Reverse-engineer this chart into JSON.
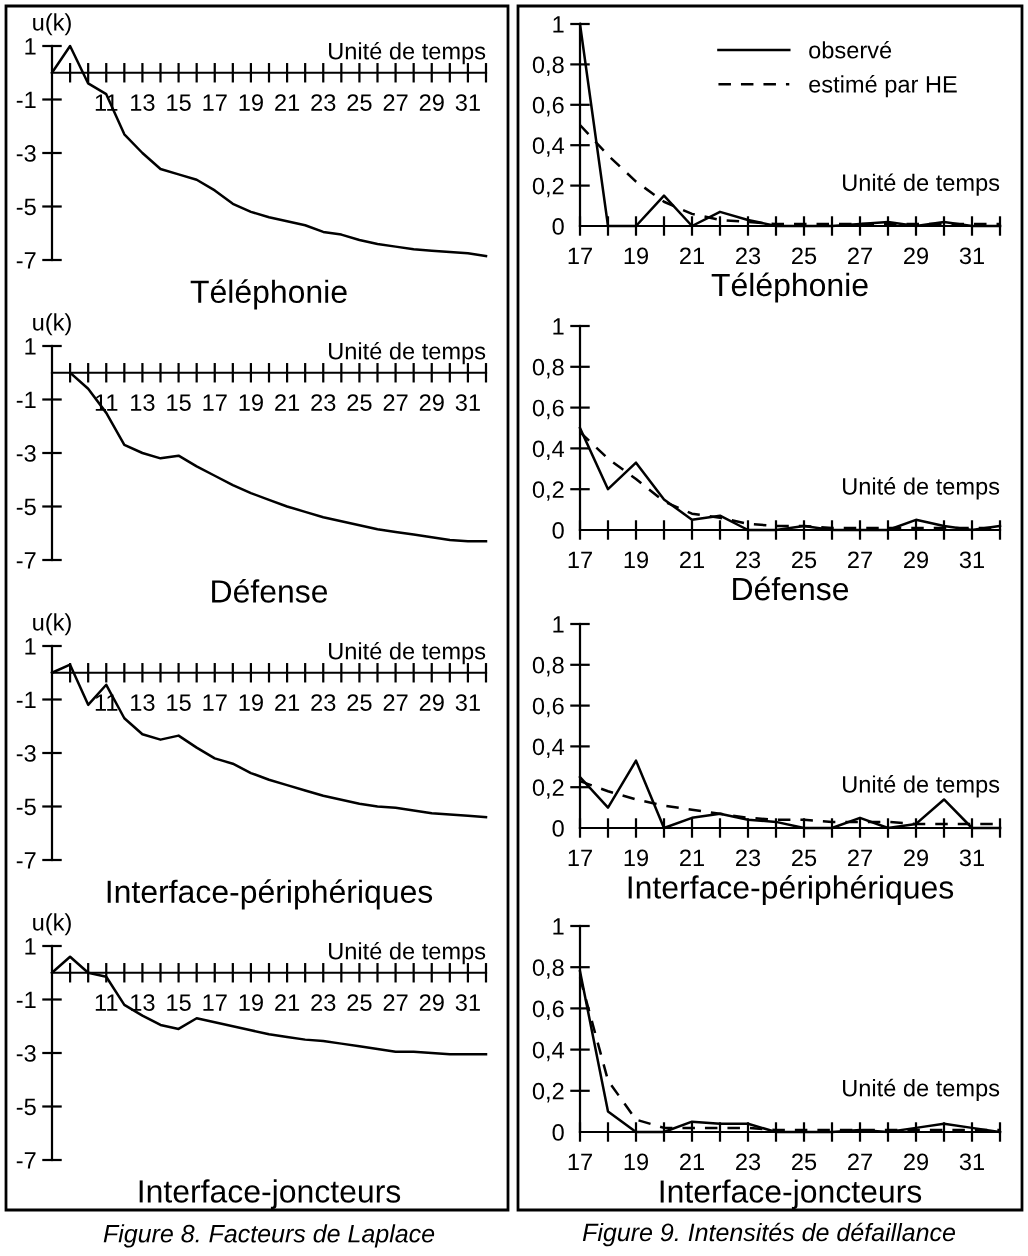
{
  "chart_data": [
    {
      "type": "line",
      "title": "Téléphonie",
      "ylabel": "u(k)",
      "xlabel": "Unité de temps",
      "xlim": [
        8,
        32
      ],
      "ylim": [
        -7,
        1
      ],
      "xticks": [
        {
          "value": 9,
          "label": null
        },
        {
          "value": 10,
          "label": null
        },
        11,
        {
          "value": 12,
          "label": null
        },
        13,
        {
          "value": 14,
          "label": null
        },
        15,
        {
          "value": 16,
          "label": null
        },
        17,
        {
          "value": 18,
          "label": null
        },
        19,
        {
          "value": 20,
          "label": null
        },
        21,
        {
          "value": 22,
          "label": null
        },
        23,
        {
          "value": 24,
          "label": null
        },
        25,
        {
          "value": 26,
          "label": null
        },
        27,
        {
          "value": 28,
          "label": null
        },
        29,
        {
          "value": 30,
          "label": null
        },
        31,
        {
          "value": 32,
          "label": null
        }
      ],
      "yticks": [
        {
          "value": 1,
          "label": "1"
        },
        {
          "value": -1,
          "label": "-1"
        },
        {
          "value": -3,
          "label": "-3"
        },
        {
          "value": -5,
          "label": "-5"
        },
        {
          "value": -7,
          "label": "-7"
        }
      ],
      "x": [
        8,
        9,
        10,
        11,
        12,
        13,
        14,
        15,
        16,
        17,
        18,
        19,
        20,
        21,
        22,
        23,
        24,
        25,
        26,
        27,
        28,
        29,
        30,
        31,
        32
      ],
      "series": [
        {
          "color": "#000000",
          "line_style": "solid",
          "values": [
            0,
            1.0,
            -0.4,
            -0.8,
            -2.3,
            -3.0,
            -3.6,
            -3.8,
            -4.0,
            -4.4,
            -4.9,
            -5.2,
            -5.4,
            -5.55,
            -5.7,
            -5.95,
            -6.05,
            -6.25,
            -6.4,
            -6.5,
            -6.6,
            -6.65,
            -6.7,
            -6.75,
            -6.85
          ]
        }
      ]
    },
    {
      "type": "line",
      "title": "Défense",
      "ylabel": "u(k)",
      "xlabel": "Unité de temps",
      "xlim": [
        8,
        32
      ],
      "ylim": [
        -7,
        1
      ],
      "xticks": [
        {
          "value": 9,
          "label": null
        },
        {
          "value": 10,
          "label": null
        },
        11,
        {
          "value": 12,
          "label": null
        },
        13,
        {
          "value": 14,
          "label": null
        },
        15,
        {
          "value": 16,
          "label": null
        },
        17,
        {
          "value": 18,
          "label": null
        },
        19,
        {
          "value": 20,
          "label": null
        },
        21,
        {
          "value": 22,
          "label": null
        },
        23,
        {
          "value": 24,
          "label": null
        },
        25,
        {
          "value": 26,
          "label": null
        },
        27,
        {
          "value": 28,
          "label": null
        },
        29,
        {
          "value": 30,
          "label": null
        },
        31,
        {
          "value": 32,
          "label": null
        }
      ],
      "yticks": [
        {
          "value": 1,
          "label": "1"
        },
        {
          "value": -1,
          "label": "-1"
        },
        {
          "value": -3,
          "label": "-3"
        },
        {
          "value": -5,
          "label": "-5"
        },
        {
          "value": -7,
          "label": "-7"
        }
      ],
      "series": [
        {
          "color": "#000000",
          "line_style": "solid",
          "x": [
            9,
            10,
            11,
            12,
            13,
            14,
            15,
            16,
            17,
            18,
            19,
            20,
            21,
            22,
            23,
            24,
            25,
            26,
            27,
            28,
            29,
            30,
            31,
            32
          ],
          "values": [
            0,
            -0.6,
            -1.5,
            -2.7,
            -3.0,
            -3.2,
            -3.1,
            -3.5,
            -3.85,
            -4.2,
            -4.5,
            -4.75,
            -5.0,
            -5.2,
            -5.4,
            -5.55,
            -5.7,
            -5.85,
            -5.95,
            -6.05,
            -6.15,
            -6.25,
            -6.3,
            -6.3
          ]
        }
      ]
    },
    {
      "type": "line",
      "title": "Interface-périphériques",
      "ylabel": "u(k)",
      "xlabel": "Unité de temps",
      "xlim": [
        8,
        32
      ],
      "ylim": [
        -7,
        1
      ],
      "xticks": [
        {
          "value": 9,
          "label": null
        },
        {
          "value": 10,
          "label": null
        },
        11,
        {
          "value": 12,
          "label": null
        },
        13,
        {
          "value": 14,
          "label": null
        },
        15,
        {
          "value": 16,
          "label": null
        },
        17,
        {
          "value": 18,
          "label": null
        },
        19,
        {
          "value": 20,
          "label": null
        },
        21,
        {
          "value": 22,
          "label": null
        },
        23,
        {
          "value": 24,
          "label": null
        },
        25,
        {
          "value": 26,
          "label": null
        },
        27,
        {
          "value": 28,
          "label": null
        },
        29,
        {
          "value": 30,
          "label": null
        },
        31,
        {
          "value": 32,
          "label": null
        }
      ],
      "yticks": [
        {
          "value": 1,
          "label": "1"
        },
        {
          "value": -1,
          "label": "-1"
        },
        {
          "value": -3,
          "label": "-3"
        },
        {
          "value": -5,
          "label": "-5"
        },
        {
          "value": -7,
          "label": "-7"
        }
      ],
      "x": [
        8,
        9,
        10,
        11,
        12,
        13,
        14,
        15,
        16,
        17,
        18,
        19,
        20,
        21,
        22,
        23,
        24,
        25,
        26,
        27,
        28,
        29,
        30,
        31,
        32
      ],
      "series": [
        {
          "color": "#000000",
          "line_style": "solid",
          "values": [
            0,
            0.3,
            -1.2,
            -0.45,
            -1.7,
            -2.3,
            -2.5,
            -2.35,
            -2.8,
            -3.2,
            -3.4,
            -3.75,
            -4.0,
            -4.2,
            -4.4,
            -4.6,
            -4.75,
            -4.9,
            -5.0,
            -5.05,
            -5.15,
            -5.25,
            -5.3,
            -5.35,
            -5.4
          ]
        }
      ]
    },
    {
      "type": "line",
      "title": "Interface-joncteurs",
      "ylabel": "u(k)",
      "xlabel": "Unité de temps",
      "xlim": [
        8,
        32
      ],
      "ylim": [
        -7,
        1
      ],
      "xticks": [
        {
          "value": 9,
          "label": null
        },
        {
          "value": 10,
          "label": null
        },
        11,
        {
          "value": 12,
          "label": null
        },
        13,
        {
          "value": 14,
          "label": null
        },
        15,
        {
          "value": 16,
          "label": null
        },
        17,
        {
          "value": 18,
          "label": null
        },
        19,
        {
          "value": 20,
          "label": null
        },
        21,
        {
          "value": 22,
          "label": null
        },
        23,
        {
          "value": 24,
          "label": null
        },
        25,
        {
          "value": 26,
          "label": null
        },
        27,
        {
          "value": 28,
          "label": null
        },
        29,
        {
          "value": 30,
          "label": null
        },
        31,
        {
          "value": 32,
          "label": null
        }
      ],
      "yticks": [
        {
          "value": 1,
          "label": "1"
        },
        {
          "value": -1,
          "label": "-1"
        },
        {
          "value": -3,
          "label": "-3"
        },
        {
          "value": -5,
          "label": "-5"
        },
        {
          "value": -7,
          "label": "-7"
        }
      ],
      "x": [
        8,
        9,
        10,
        11,
        12,
        13,
        14,
        15,
        16,
        17,
        18,
        19,
        20,
        21,
        22,
        23,
        24,
        25,
        26,
        27,
        28,
        29,
        30,
        31,
        32
      ],
      "series": [
        {
          "color": "#000000",
          "line_style": "solid",
          "values": [
            0,
            0.6,
            0.0,
            -0.15,
            -1.2,
            -1.6,
            -1.95,
            -2.1,
            -1.7,
            -1.85,
            -2.0,
            -2.15,
            -2.3,
            -2.4,
            -2.5,
            -2.55,
            -2.65,
            -2.75,
            -2.85,
            -2.95,
            -2.95,
            -3.0,
            -3.05,
            -3.05,
            -3.05
          ]
        }
      ],
      "annotations": [
        "Figure 8. Facteurs de Laplace"
      ]
    },
    {
      "type": "line",
      "title": "Téléphonie",
      "xlabel": "Unité de temps",
      "xlim": [
        17,
        32
      ],
      "ylim": [
        0,
        1
      ],
      "legend": "top right",
      "xticks": [
        17,
        {
          "value": 18,
          "label": null
        },
        19,
        {
          "value": 20,
          "label": null
        },
        21,
        {
          "value": 22,
          "label": null
        },
        23,
        {
          "value": 24,
          "label": null
        },
        25,
        {
          "value": 26,
          "label": null
        },
        27,
        {
          "value": 28,
          "label": null
        },
        29,
        {
          "value": 30,
          "label": null
        },
        31,
        {
          "value": 32,
          "label": null
        }
      ],
      "yticks": [
        0,
        {
          "value": 0.2,
          "label": "0,2"
        },
        {
          "value": 0.4,
          "label": "0,4"
        },
        {
          "value": 0.6,
          "label": "0,6"
        },
        {
          "value": 0.8,
          "label": "0,8"
        },
        1
      ],
      "x": [
        17,
        18,
        19,
        20,
        21,
        22,
        23,
        24,
        25,
        26,
        27,
        28,
        29,
        30,
        31,
        32
      ],
      "series": [
        {
          "name": "observé",
          "color": "#000000",
          "line_style": "solid",
          "values": [
            1.0,
            0,
            0,
            0.15,
            0,
            0.07,
            0.03,
            0,
            0,
            0,
            0.01,
            0.02,
            0,
            0.02,
            0,
            0
          ]
        },
        {
          "name": "estimé par HE",
          "color": "#000000",
          "line_style": "dashed",
          "values": [
            0.5,
            0.35,
            0.22,
            0.12,
            0.06,
            0.03,
            0.02,
            0.01,
            0.01,
            0.01,
            0.01,
            0.01,
            0.01,
            0.01,
            0.01,
            0.01
          ]
        }
      ]
    },
    {
      "type": "line",
      "title": "Défense",
      "xlabel": "Unité de temps",
      "xlim": [
        17,
        32
      ],
      "ylim": [
        0,
        1
      ],
      "xticks": [
        17,
        {
          "value": 18,
          "label": null
        },
        19,
        {
          "value": 20,
          "label": null
        },
        21,
        {
          "value": 22,
          "label": null
        },
        23,
        {
          "value": 24,
          "label": null
        },
        25,
        {
          "value": 26,
          "label": null
        },
        27,
        {
          "value": 28,
          "label": null
        },
        29,
        {
          "value": 30,
          "label": null
        },
        31,
        {
          "value": 32,
          "label": null
        }
      ],
      "yticks": [
        0,
        {
          "value": 0.2,
          "label": "0,2"
        },
        {
          "value": 0.4,
          "label": "0,4"
        },
        {
          "value": 0.6,
          "label": "0,6"
        },
        {
          "value": 0.8,
          "label": "0,8"
        },
        1
      ],
      "x": [
        17,
        18,
        19,
        20,
        21,
        22,
        23,
        24,
        25,
        26,
        27,
        28,
        29,
        30,
        31,
        32
      ],
      "series": [
        {
          "color": "#000000",
          "line_style": "solid",
          "values": [
            0.5,
            0.2,
            0.33,
            0.15,
            0.05,
            0.07,
            0,
            0,
            0.02,
            0,
            0,
            0,
            0.05,
            0.02,
            0,
            0.02
          ]
        },
        {
          "color": "#000000",
          "line_style": "dashed",
          "values": [
            0.48,
            0.35,
            0.25,
            0.14,
            0.08,
            0.06,
            0.03,
            0.02,
            0.02,
            0.01,
            0.01,
            0.01,
            0.01,
            0.01,
            0.01,
            0.01
          ]
        }
      ]
    },
    {
      "type": "line",
      "title": "Interface-périphériques",
      "xlabel": "Unité de temps",
      "xlim": [
        17,
        32
      ],
      "ylim": [
        0,
        1
      ],
      "xticks": [
        17,
        {
          "value": 18,
          "label": null
        },
        19,
        {
          "value": 20,
          "label": null
        },
        21,
        {
          "value": 22,
          "label": null
        },
        23,
        {
          "value": 24,
          "label": null
        },
        25,
        {
          "value": 26,
          "label": null
        },
        27,
        {
          "value": 28,
          "label": null
        },
        29,
        {
          "value": 30,
          "label": null
        },
        31,
        {
          "value": 32,
          "label": null
        }
      ],
      "yticks": [
        0,
        {
          "value": 0.2,
          "label": "0,2"
        },
        {
          "value": 0.4,
          "label": "0,4"
        },
        {
          "value": 0.6,
          "label": "0,6"
        },
        {
          "value": 0.8,
          "label": "0,8"
        },
        1
      ],
      "x": [
        17,
        18,
        19,
        20,
        21,
        22,
        23,
        24,
        25,
        26,
        27,
        28,
        29,
        30,
        31,
        32
      ],
      "series": [
        {
          "color": "#000000",
          "line_style": "solid",
          "values": [
            0.25,
            0.1,
            0.33,
            0,
            0.05,
            0.07,
            0.04,
            0.03,
            0,
            0,
            0.05,
            0,
            0.02,
            0.14,
            0,
            0
          ]
        },
        {
          "color": "#000000",
          "line_style": "dashed",
          "values": [
            0.23,
            0.18,
            0.14,
            0.11,
            0.09,
            0.07,
            0.05,
            0.04,
            0.04,
            0.03,
            0.03,
            0.03,
            0.02,
            0.02,
            0.02,
            0.02
          ]
        }
      ]
    },
    {
      "type": "line",
      "title": "Interface-joncteurs",
      "xlabel": "Unité de temps",
      "xlim": [
        17,
        32
      ],
      "ylim": [
        0,
        1
      ],
      "xticks": [
        17,
        {
          "value": 18,
          "label": null
        },
        19,
        {
          "value": 20,
          "label": null
        },
        21,
        {
          "value": 22,
          "label": null
        },
        23,
        {
          "value": 24,
          "label": null
        },
        25,
        {
          "value": 26,
          "label": null
        },
        27,
        {
          "value": 28,
          "label": null
        },
        29,
        {
          "value": 30,
          "label": null
        },
        31,
        {
          "value": 32,
          "label": null
        }
      ],
      "yticks": [
        0,
        {
          "value": 0.2,
          "label": "0,2"
        },
        {
          "value": 0.4,
          "label": "0,4"
        },
        {
          "value": 0.6,
          "label": "0,6"
        },
        {
          "value": 0.8,
          "label": "0,8"
        },
        1
      ],
      "x": [
        17,
        18,
        19,
        20,
        21,
        22,
        23,
        24,
        25,
        26,
        27,
        28,
        29,
        30,
        31,
        32
      ],
      "series": [
        {
          "color": "#000000",
          "line_style": "solid",
          "values": [
            0.78,
            0.1,
            0,
            0,
            0.05,
            0.04,
            0.04,
            0,
            0,
            0,
            0.01,
            0,
            0.02,
            0.04,
            0.02,
            0
          ]
        },
        {
          "color": "#000000",
          "line_style": "dashed",
          "values": [
            0.75,
            0.25,
            0.06,
            0.02,
            0.02,
            0.02,
            0.02,
            0.01,
            0.01,
            0.01,
            0.01,
            0.01,
            0.01,
            0.01,
            0.01,
            0.01
          ]
        }
      ],
      "annotations": [
        "Figure 9. Intensités de défaillance"
      ]
    }
  ]
}
